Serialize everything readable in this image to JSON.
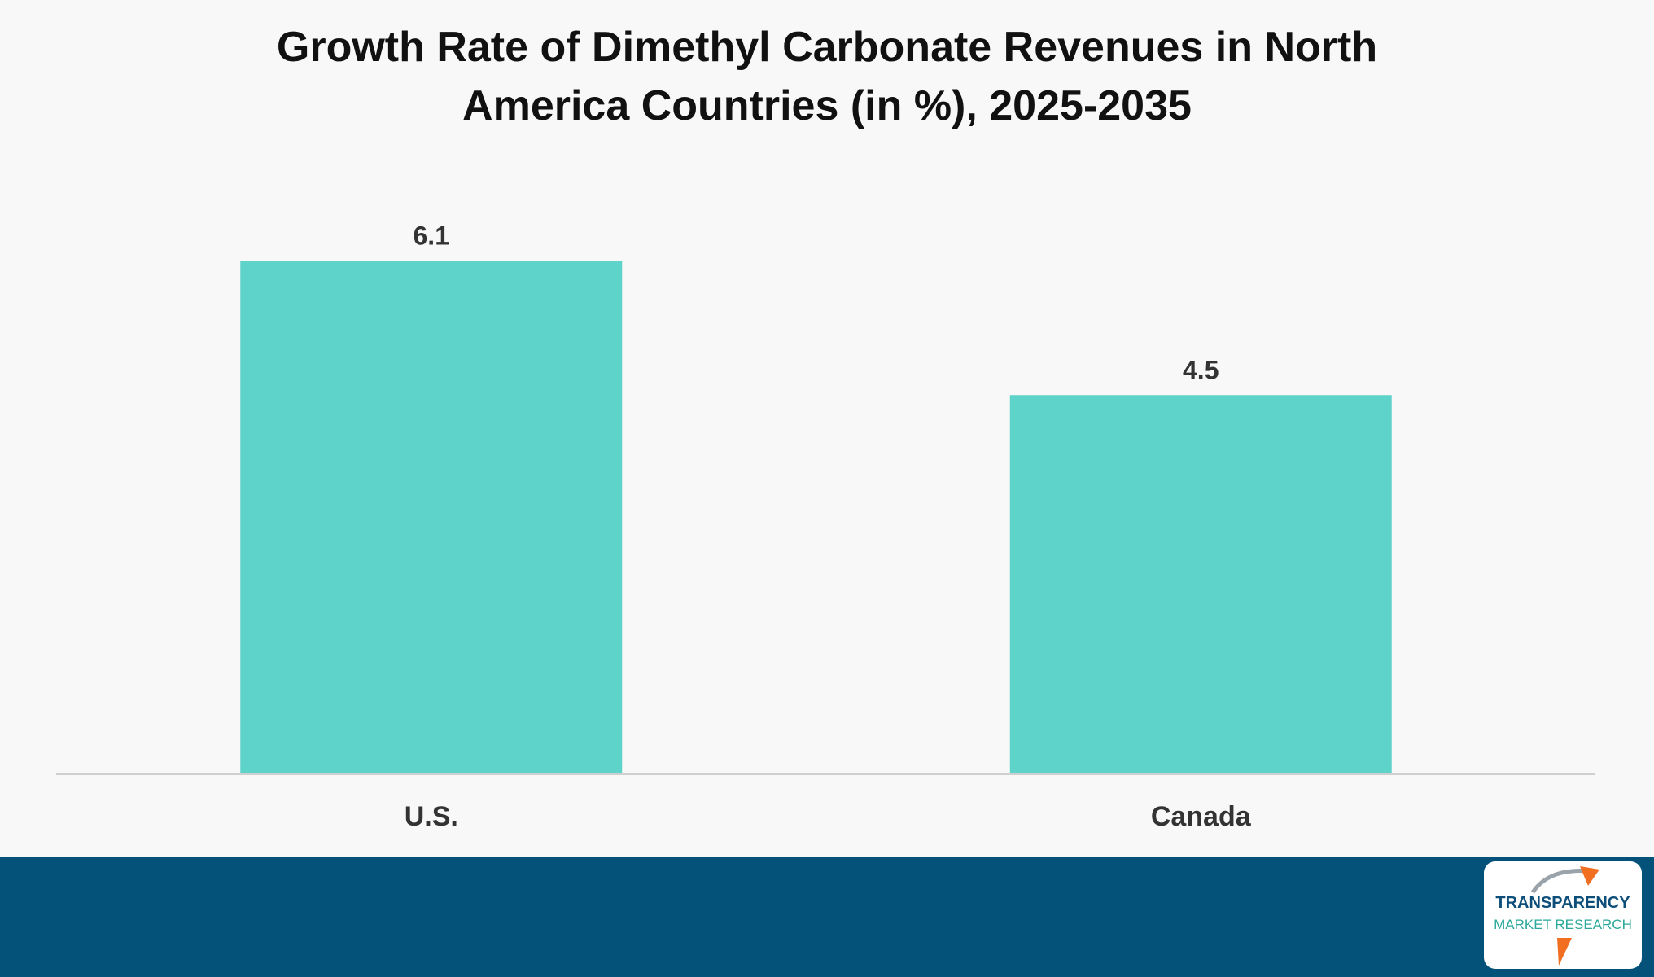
{
  "chart_data": {
    "type": "bar",
    "title": "Growth Rate of Dimethyl Carbonate Revenues in North America Countries (in %), 2025-2035",
    "categories": [
      "U.S.",
      "Canada"
    ],
    "values": [
      6.1,
      4.5
    ],
    "color": "#5dd3c9"
  },
  "logo": {
    "name": "TRANSPARENCY",
    "subtitle": "MARKET RESEARCH"
  }
}
